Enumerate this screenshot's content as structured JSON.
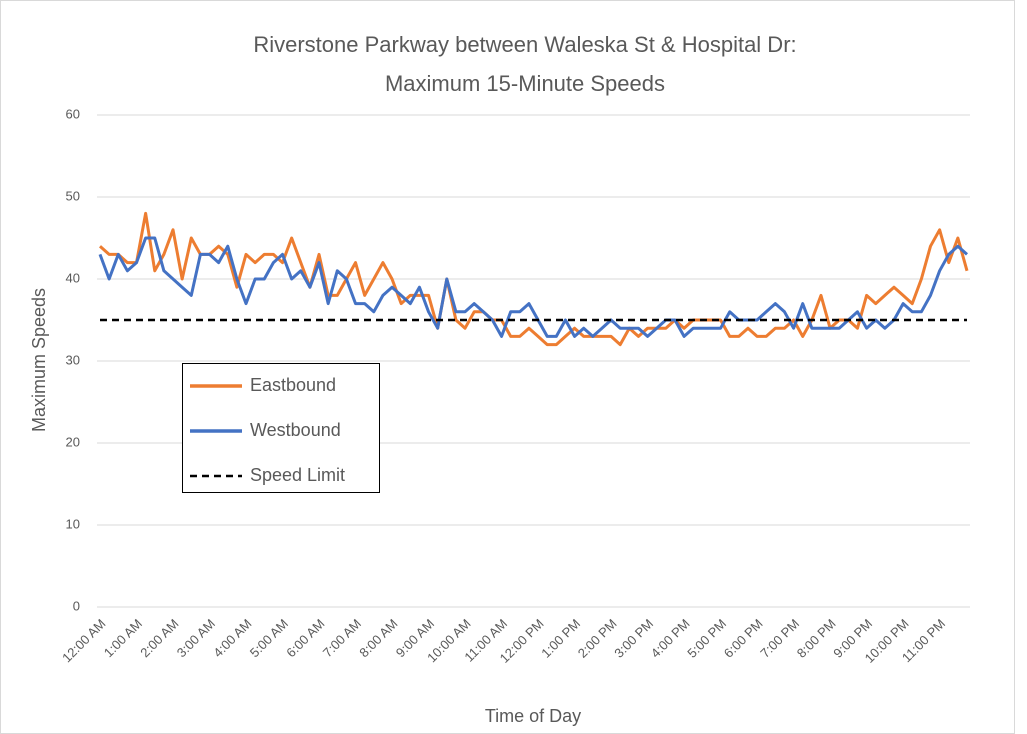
{
  "chart_data": {
    "type": "line",
    "title": [
      "Riverstone Parkway between Waleska St & Hospital Dr:",
      "Maximum 15-Minute Speeds"
    ],
    "x_label": "Time of Day",
    "y_label": "Maximum Speeds",
    "categories": [
      "12:00 AM",
      null,
      null,
      null,
      "1:00 AM",
      null,
      null,
      null,
      "2:00 AM",
      null,
      null,
      null,
      "3:00 AM",
      null,
      null,
      null,
      "4:00 AM",
      null,
      null,
      null,
      "5:00 AM",
      null,
      null,
      null,
      "6:00 AM",
      null,
      null,
      null,
      "7:00 AM",
      null,
      null,
      null,
      "8:00 AM",
      null,
      null,
      null,
      "9:00 AM",
      null,
      null,
      null,
      "10:00 AM",
      null,
      null,
      null,
      "11:00 AM",
      null,
      null,
      null,
      "12:00 PM",
      null,
      null,
      null,
      "1:00 PM",
      null,
      null,
      null,
      "2:00 PM",
      null,
      null,
      null,
      "3:00 PM",
      null,
      null,
      null,
      "4:00 PM",
      null,
      null,
      null,
      "5:00 PM",
      null,
      null,
      null,
      "6:00 PM",
      null,
      null,
      null,
      "7:00 PM",
      null,
      null,
      null,
      "8:00 PM",
      null,
      null,
      null,
      "9:00 PM",
      null,
      null,
      null,
      "10:00 PM",
      null,
      null,
      null,
      "11:00 PM",
      null,
      null,
      null
    ],
    "series": [
      {
        "name": "Eastbound",
        "color": "#ed7d31",
        "dashed": false,
        "values": [
          44,
          43,
          43,
          42,
          42,
          48,
          41,
          43,
          46,
          40,
          45,
          43,
          43,
          44,
          43,
          39,
          43,
          42,
          43,
          43,
          42,
          45,
          42,
          39,
          43,
          38,
          38,
          40,
          42,
          38,
          40,
          42,
          40,
          37,
          38,
          38,
          38,
          34,
          40,
          35,
          34,
          36,
          36,
          35,
          35,
          33,
          33,
          34,
          33,
          32,
          32,
          33,
          34,
          33,
          33,
          33,
          33,
          32,
          34,
          33,
          34,
          34,
          34,
          35,
          34,
          35,
          35,
          35,
          35,
          33,
          33,
          34,
          33,
          33,
          34,
          34,
          35,
          33,
          35,
          38,
          34,
          35,
          35,
          34,
          38,
          37,
          38,
          39,
          38,
          37,
          40,
          44,
          46,
          42,
          45,
          41
        ]
      },
      {
        "name": "Westbound",
        "color": "#4472c4",
        "dashed": false,
        "values": [
          43,
          40,
          43,
          41,
          42,
          45,
          45,
          41,
          40,
          39,
          38,
          43,
          43,
          42,
          44,
          40,
          37,
          40,
          40,
          42,
          43,
          40,
          41,
          39,
          42,
          37,
          41,
          40,
          37,
          37,
          36,
          38,
          39,
          38,
          37,
          39,
          36,
          34,
          40,
          36,
          36,
          37,
          36,
          35,
          33,
          36,
          36,
          37,
          35,
          33,
          33,
          35,
          33,
          34,
          33,
          34,
          35,
          34,
          34,
          34,
          33,
          34,
          35,
          35,
          33,
          34,
          34,
          34,
          34,
          36,
          35,
          35,
          35,
          36,
          37,
          36,
          34,
          37,
          34,
          34,
          34,
          34,
          35,
          36,
          34,
          35,
          34,
          35,
          37,
          36,
          36,
          38,
          41,
          43,
          44,
          43
        ]
      },
      {
        "name": "Speed Limit",
        "color": "#000000",
        "dashed": true,
        "values": [
          35,
          35,
          35,
          35,
          35,
          35,
          35,
          35,
          35,
          35,
          35,
          35,
          35,
          35,
          35,
          35,
          35,
          35,
          35,
          35,
          35,
          35,
          35,
          35,
          35,
          35,
          35,
          35,
          35,
          35,
          35,
          35,
          35,
          35,
          35,
          35,
          35,
          35,
          35,
          35,
          35,
          35,
          35,
          35,
          35,
          35,
          35,
          35,
          35,
          35,
          35,
          35,
          35,
          35,
          35,
          35,
          35,
          35,
          35,
          35,
          35,
          35,
          35,
          35,
          35,
          35,
          35,
          35,
          35,
          35,
          35,
          35,
          35,
          35,
          35,
          35,
          35,
          35,
          35,
          35,
          35,
          35,
          35,
          35,
          35,
          35,
          35,
          35,
          35,
          35,
          35,
          35,
          35,
          35,
          35,
          35
        ]
      }
    ],
    "ylim": [
      0,
      60
    ],
    "yticks": [
      0,
      10,
      20,
      30,
      40,
      50,
      60
    ],
    "grid": true,
    "legend": "left"
  }
}
